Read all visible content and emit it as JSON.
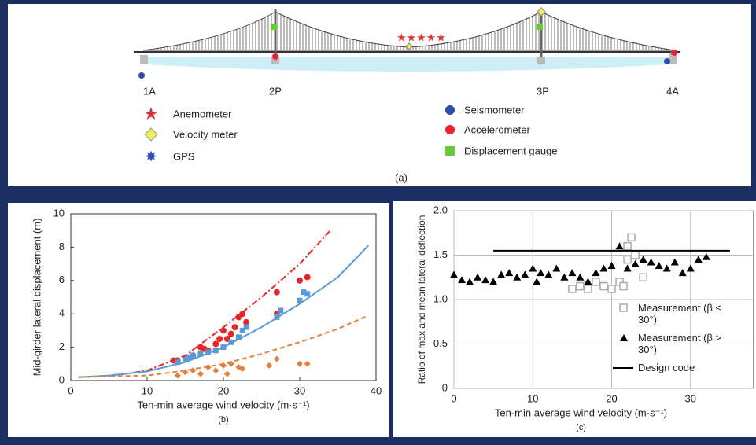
{
  "diagram": {
    "piers": [
      "1A",
      "2P",
      "3P",
      "4A"
    ],
    "legend": [
      "Anemometer",
      "Velocity meter",
      "GPS",
      "Seismometer",
      "Accelerometer",
      "Displacement gauge"
    ],
    "caption": "(a)"
  },
  "chart_data": [
    {
      "type": "scatter",
      "xlabel": "Ten-min average wind velocity (m·s⁻¹)",
      "ylabel": "Mid-girder lateral displacement (m)",
      "caption": "(b)",
      "xlim": [
        0,
        40
      ],
      "ylim": [
        0,
        10
      ],
      "xticks": [
        0,
        10,
        20,
        30,
        40
      ],
      "yticks": [
        0,
        2,
        4,
        6,
        8,
        10
      ],
      "grid": false,
      "series": [
        {
          "color": "#e8262a",
          "marker": "circle",
          "x": [
            13.5,
            14,
            16,
            17,
            17.5,
            18,
            19,
            19.5,
            20,
            20.5,
            21,
            21.5,
            22,
            22.5,
            23,
            27,
            27,
            30,
            31
          ],
          "values": [
            1.2,
            1.2,
            1.5,
            2,
            1.9,
            1.8,
            2.2,
            2.5,
            3,
            2.5,
            2.8,
            3.2,
            3.8,
            4,
            3.5,
            5.3,
            4,
            6,
            6.2
          ]
        },
        {
          "color": "#5b9bd5",
          "marker": "square",
          "x": [
            14,
            15,
            15.5,
            16,
            17,
            18,
            19,
            20,
            21,
            22,
            22.5,
            23,
            27,
            27.5,
            30,
            30.5,
            31
          ],
          "values": [
            1.1,
            1.3,
            1.4,
            1.5,
            1.6,
            1.7,
            1.8,
            2,
            2.3,
            2.6,
            3,
            3.2,
            3.8,
            4.2,
            4.8,
            5.3,
            5.2
          ]
        },
        {
          "color": "#e67e3c",
          "marker": "diamond",
          "x": [
            14,
            15,
            16,
            17,
            18,
            19,
            20,
            20.5,
            21,
            22,
            22.5,
            26,
            27,
            30,
            31
          ],
          "values": [
            0.3,
            0.5,
            0.6,
            0.4,
            0.8,
            0.6,
            0.9,
            0.4,
            1,
            0.8,
            0.7,
            0.9,
            1.3,
            1,
            1
          ]
        },
        {
          "color": "#e8262a",
          "marker": "line",
          "dash": "dashdot",
          "x": [
            5,
            10,
            15,
            20,
            25,
            30,
            34
          ],
          "values": [
            0.25,
            0.6,
            1.5,
            3.2,
            5,
            7,
            9
          ]
        },
        {
          "color": "#5b9bd5",
          "marker": "line",
          "dash": "solid",
          "x": [
            1,
            5,
            10,
            15,
            20,
            25,
            30,
            35,
            39
          ],
          "values": [
            0.2,
            0.3,
            0.55,
            1.1,
            2,
            3.2,
            4.6,
            6.2,
            8.1
          ]
        },
        {
          "color": "#e67e3c",
          "marker": "line",
          "dash": "dashed",
          "x": [
            1,
            10,
            15,
            20,
            25,
            30,
            35,
            39
          ],
          "values": [
            0.2,
            0.3,
            0.6,
            1,
            1.6,
            2.3,
            3.1,
            3.9
          ]
        }
      ]
    },
    {
      "type": "scatter",
      "xlabel": "Ten-min average wind velocity (m·s⁻¹)",
      "ylabel": "Ratio of max and mean lateral deflection",
      "caption": "(c)",
      "xlim": [
        0,
        38
      ],
      "ylim": [
        0,
        2
      ],
      "xticks": [
        0,
        10,
        20,
        30
      ],
      "yticks": [
        0,
        0.5,
        {
          "value": 1,
          "label": "1.0"
        },
        1.5,
        {
          "value": 2,
          "label": "2.0"
        }
      ],
      "grid": true,
      "legend": "lower-right",
      "series": [
        {
          "name": "Measurement (β ≤ 30°)",
          "color": "#aaaaaa",
          "marker": "open-square",
          "x": [
            15,
            16,
            17,
            18,
            19,
            20,
            21,
            21.5,
            22,
            22,
            22.5,
            23,
            24
          ],
          "values": [
            1.12,
            1.15,
            1.12,
            1.2,
            1.15,
            1.12,
            1.2,
            1.15,
            1.45,
            1.6,
            1.7,
            1.5,
            1.25
          ]
        },
        {
          "name": "Measurement (β > 30°)",
          "color": "#000000",
          "marker": "triangle",
          "x": [
            0,
            1,
            2,
            3,
            4,
            5,
            6,
            7,
            8,
            9,
            10,
            10.5,
            11,
            12,
            13,
            14,
            15,
            16,
            17,
            18,
            19,
            20,
            21,
            22,
            23,
            24,
            25,
            26,
            27,
            28,
            29,
            30,
            31,
            32
          ],
          "values": [
            1.28,
            1.22,
            1.2,
            1.25,
            1.22,
            1.2,
            1.28,
            1.3,
            1.25,
            1.28,
            1.35,
            1.2,
            1.3,
            1.28,
            1.35,
            1.25,
            1.3,
            1.25,
            1.2,
            1.3,
            1.35,
            1.38,
            1.6,
            1.35,
            1.4,
            1.45,
            1.42,
            1.38,
            1.35,
            1.42,
            1.3,
            1.35,
            1.45,
            1.48
          ]
        },
        {
          "name": "Design code",
          "color": "#000000",
          "marker": "line",
          "dash": "solid",
          "x": [
            5,
            35
          ],
          "values": [
            1.55,
            1.55
          ]
        }
      ]
    }
  ]
}
